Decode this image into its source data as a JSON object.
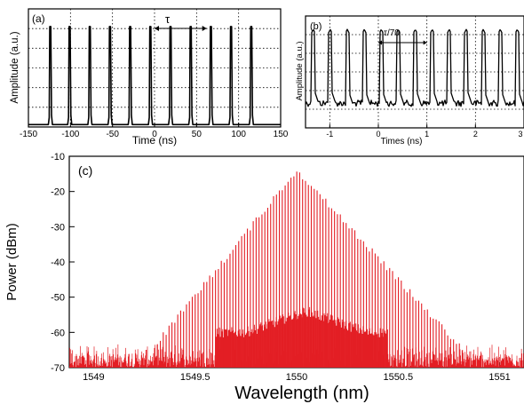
{
  "chart_data": [
    {
      "panel": "(a)",
      "type": "line",
      "xlabel": "Time (ns)",
      "ylabel": "Amplitude (a.u.)",
      "xlim": [
        -150,
        150
      ],
      "xticks": [
        -150,
        -100,
        -50,
        0,
        50,
        100,
        150
      ],
      "yticks": [],
      "annotation": "τ",
      "annotation_span_x": [
        0,
        62
      ],
      "grid": true,
      "series": [
        {
          "pulses_x": [
            -124,
            -101,
            -77,
            -53,
            -29,
            -5,
            19,
            43,
            67,
            91,
            115
          ],
          "pulse_height_fraction": 0.85,
          "baseline_fraction": 0.02,
          "color": "#000000"
        }
      ]
    },
    {
      "panel": "(b)",
      "type": "line",
      "xlabel": "Times (ns)",
      "ylabel": "Amplitude (a.u.)",
      "xlim": [
        -1.5,
        3
      ],
      "xticks": [
        -1,
        0,
        1,
        2,
        3
      ],
      "yticks": [],
      "annotation": "τ/70",
      "annotation_span_x": [
        0,
        1
      ],
      "grid": true,
      "series": [
        {
          "pulses_x": [
            -1.34,
            -0.99,
            -0.64,
            -0.29,
            0.06,
            0.41,
            0.76,
            1.11,
            1.46,
            1.81,
            2.16,
            2.51,
            2.86
          ],
          "pulse_height_fraction": 0.88,
          "baseline_fraction": 0.22,
          "color": "#000000"
        }
      ]
    },
    {
      "panel": "(c)",
      "type": "line",
      "xlabel": "Wavelength (nm)",
      "ylabel": "Power (dBm)",
      "xlim": [
        1548.88,
        1551.12
      ],
      "ylim": [
        -70,
        -10
      ],
      "xticks": [
        1549,
        1549.5,
        1550,
        1550.5,
        1551
      ],
      "yticks": [
        -70,
        -60,
        -50,
        -40,
        -30,
        -20,
        -10
      ],
      "grid": false,
      "series": [
        {
          "peak_wavelength": 1550.0,
          "peak_power": -13,
          "envelope_left_floor": {
            "x": 1549.3,
            "y": -63
          },
          "envelope_right_floor": {
            "x": 1550.82,
            "y": -64
          },
          "noise_floor_range": [
            -70,
            -63
          ],
          "line_spacing_nm": 0.0143,
          "color": "#e31e24"
        }
      ]
    }
  ]
}
